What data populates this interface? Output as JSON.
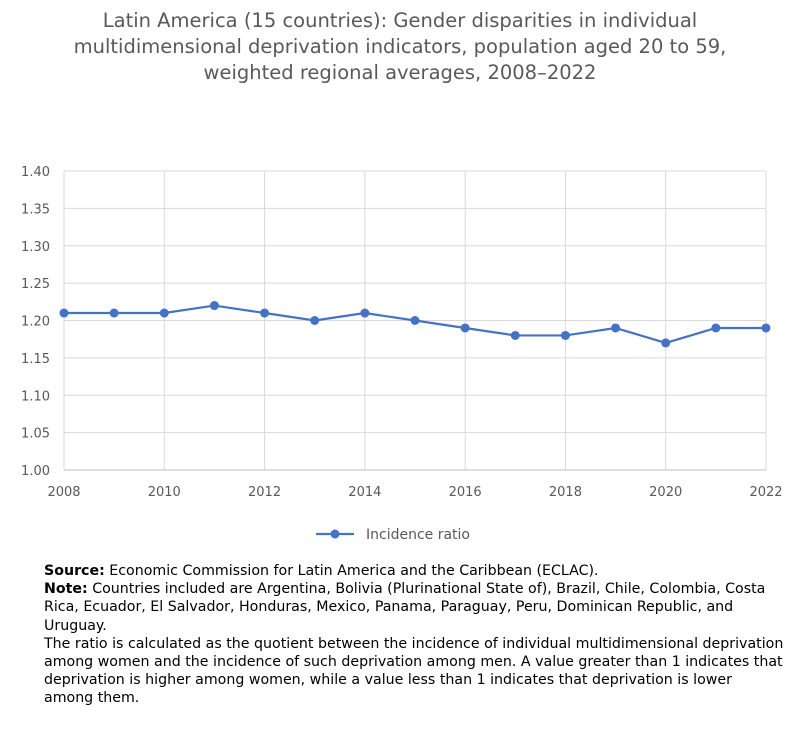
{
  "chart_data": {
    "type": "line",
    "title": "Latin America (15 countries): Gender disparities in individual multidimensional deprivation indicators, population aged 20 to 59, weighted regional averages, 2008–2022",
    "x": [
      2008,
      2009,
      2010,
      2011,
      2012,
      2013,
      2014,
      2015,
      2016,
      2017,
      2018,
      2019,
      2020,
      2021,
      2022
    ],
    "series": [
      {
        "name": "Incidence ratio",
        "color": "#4472C4",
        "values": [
          1.21,
          1.21,
          1.21,
          1.22,
          1.21,
          1.2,
          1.21,
          1.2,
          1.19,
          1.18,
          1.18,
          1.19,
          1.17,
          1.19,
          1.19
        ]
      }
    ],
    "xticks": [
      "2008",
      "2010",
      "2012",
      "2014",
      "2016",
      "2018",
      "2020",
      "2022"
    ],
    "yticks": [
      "1.00",
      "1.05",
      "1.10",
      "1.15",
      "1.20",
      "1.25",
      "1.30",
      "1.35",
      "1.40"
    ],
    "ylim": [
      1.0,
      1.4
    ],
    "xlim": [
      2008,
      2022
    ],
    "grid": true,
    "legend_position": "bottom",
    "xlabel": "",
    "ylabel": ""
  },
  "notes": {
    "source_label": "Source:",
    "source_text": " Economic Commission for Latin America and the Caribbean (ECLAC).",
    "note_label": "Note:",
    "note_text": " Countries included are Argentina, Bolivia (Plurinational State of), Brazil, Chile, Colombia, Costa Rica, Ecuador, El Salvador, Honduras, Mexico, Panama, Paraguay, Peru, Dominican Republic, and Uruguay.",
    "ratio_text": "The ratio is calculated as the quotient between the incidence of individual multidimensional deprivation among women and the incidence of such deprivation among men. A value greater than 1 indicates that deprivation is higher among women, while a value less than 1 indicates that deprivation is lower among them."
  }
}
